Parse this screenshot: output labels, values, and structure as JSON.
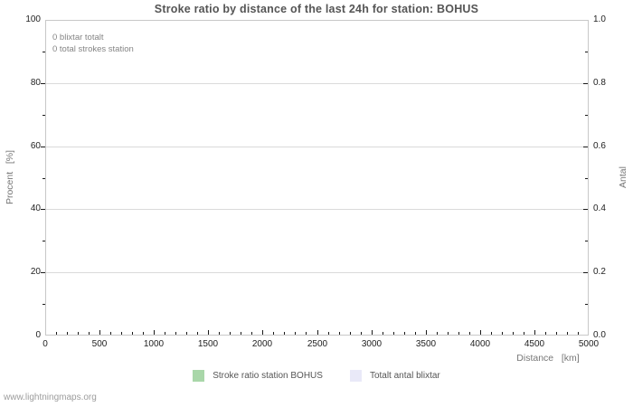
{
  "chart_data": {
    "type": "line",
    "title": "Stroke ratio by distance of the last 24h for station: BOHUS",
    "annotations": [
      "0 blixtar totalt",
      "0 total strokes station"
    ],
    "x_axis": {
      "label": "Distance   [km]",
      "min": 0,
      "max": 5000,
      "major_step": 500,
      "minor_step": 100,
      "tick_labels": [
        "0",
        "500",
        "1000",
        "1500",
        "2000",
        "2500",
        "3000",
        "3500",
        "4000",
        "4500",
        "5000"
      ]
    },
    "y_left": {
      "label": "Procent   [%]",
      "min": 0,
      "max": 100,
      "major_step": 20,
      "minor_step": 10,
      "tick_labels": [
        "0",
        "20",
        "40",
        "60",
        "80",
        "100"
      ]
    },
    "y_right": {
      "label": "Antal",
      "min": 0,
      "max": 1,
      "major_step": 0.2,
      "minor_step": 0.1,
      "tick_labels": [
        "0.0",
        "0.2",
        "0.4",
        "0.6",
        "0.8",
        "1.0"
      ]
    },
    "series": [
      {
        "name": "Stroke ratio station BOHUS",
        "color": "#a9d7a9",
        "values": []
      },
      {
        "name": "Totalt antal blixtar",
        "color": "#e9e9f8",
        "values": []
      }
    ],
    "grid": "horizontal-major",
    "legend_position": "bottom-center",
    "colors": {
      "frame": "#c8c8c8",
      "grid": "#dadada",
      "tick": "#1a1a1a",
      "title": "#555555"
    }
  },
  "footer": {
    "watermark": "www.lightningmaps.org"
  }
}
